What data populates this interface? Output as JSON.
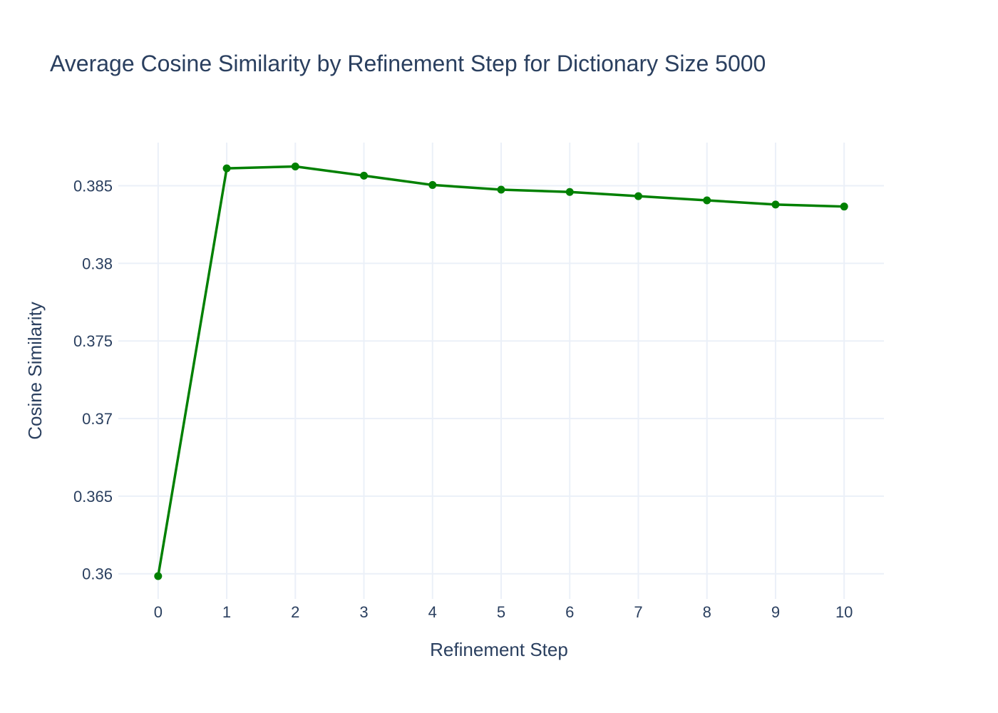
{
  "chart_data": {
    "type": "line",
    "title": "Average Cosine Similarity by Refinement Step for Dictionary Size 5000",
    "xlabel": "Refinement Step",
    "ylabel": "Cosine Similarity",
    "x": [
      0,
      1,
      2,
      3,
      4,
      5,
      6,
      7,
      8,
      9,
      10
    ],
    "series": [
      {
        "values": [
          0.35985,
          0.38612,
          0.38624,
          0.38565,
          0.38505,
          0.38475,
          0.3846,
          0.38433,
          0.38406,
          0.38379,
          0.38366
        ]
      }
    ],
    "xticks": [
      "0",
      "1",
      "2",
      "3",
      "4",
      "5",
      "6",
      "7",
      "8",
      "9",
      "10"
    ],
    "yticks": [
      {
        "value": 0.36,
        "label": "0.36"
      },
      {
        "value": 0.365,
        "label": "0.365"
      },
      {
        "value": 0.37,
        "label": "0.37"
      },
      {
        "value": 0.375,
        "label": "0.375"
      },
      {
        "value": 0.38,
        "label": "0.38"
      },
      {
        "value": 0.385,
        "label": "0.385"
      }
    ],
    "xlim": [
      -0.58,
      10.58
    ],
    "ylim": [
      0.35838,
      0.38778
    ],
    "grid": true,
    "legend": "none",
    "colors": {
      "line": "#008000",
      "grid": "#ebf0f8",
      "text": "#2a3f5f"
    }
  }
}
